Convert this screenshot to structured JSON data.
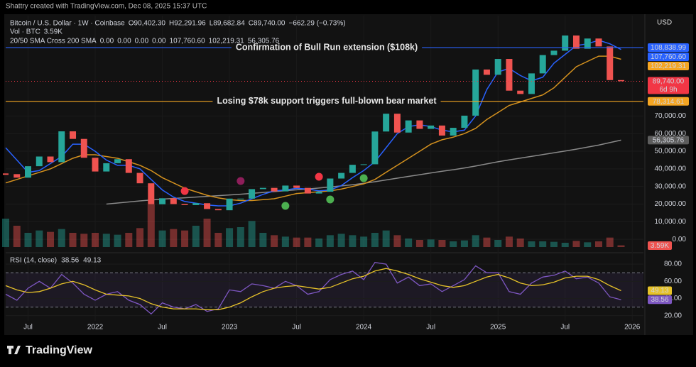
{
  "header": "Shattry created with TradingView.com, Dec 08, 2025 15:37 UTC",
  "footer_logo": "TradingView",
  "chart_data": [
    {
      "type": "candlestick",
      "title": "Bitcoin / U.S. Dollar · 1W · Coinbase",
      "ohlc_legend": [
        "O90,402.30",
        "H92,291.96",
        "L89,682.84",
        "C89,740.00",
        "−662.29 (−0.73%)"
      ],
      "volume_legend": "Vol · BTC",
      "indicator_legend": "20/50 SMA Cross 200 SMA",
      "indicator_values": [
        {
          "text": "0.00",
          "color": "#26a69a"
        },
        {
          "text": "0.00",
          "color": "#26a69a"
        },
        {
          "text": "0.00",
          "color": "#089981"
        },
        {
          "text": "0.00",
          "color": "#f23645"
        },
        {
          "text": "107,760.60",
          "color": "#2962ff"
        },
        {
          "text": "102,219.31",
          "color": "#f5a623"
        },
        {
          "text": "56,305.76",
          "color": "#9e9e9e"
        }
      ],
      "x": [
        "2021-05",
        "2021-06",
        "2021-07",
        "2021-08",
        "2021-09",
        "2021-10",
        "2021-11",
        "2021-12",
        "2022-01",
        "2022-02",
        "2022-03",
        "2022-04",
        "2022-05",
        "2022-06",
        "2022-07",
        "2022-08",
        "2022-09",
        "2022-10",
        "2022-11",
        "2022-12",
        "2023-01",
        "2023-02",
        "2023-03",
        "2023-04",
        "2023-05",
        "2023-06",
        "2023-07",
        "2023-08",
        "2023-09",
        "2023-10",
        "2023-11",
        "2023-12",
        "2024-01",
        "2024-02",
        "2024-03",
        "2024-04",
        "2024-05",
        "2024-06",
        "2024-07",
        "2024-08",
        "2024-09",
        "2024-10",
        "2024-11",
        "2024-12",
        "2025-01",
        "2025-02",
        "2025-03",
        "2025-04",
        "2025-05",
        "2025-06",
        "2025-07",
        "2025-08",
        "2025-09",
        "2025-10",
        "2025-11",
        "2025-12"
      ],
      "xlim": [
        "2021-05",
        "2026-02"
      ],
      "xticks": [
        {
          "value": "2021-07",
          "label": "Jul"
        },
        {
          "value": "2022-01",
          "label": "2022"
        },
        {
          "value": "2022-07",
          "label": "Jul"
        },
        {
          "value": "2023-01",
          "label": "2023"
        },
        {
          "value": "2023-07",
          "label": "Jul"
        },
        {
          "value": "2024-01",
          "label": "2024"
        },
        {
          "value": "2024-07",
          "label": "Jul"
        },
        {
          "value": "2025-01",
          "label": "2025"
        },
        {
          "value": "2025-07",
          "label": "Jul"
        },
        {
          "value": "2026-01",
          "label": "2026"
        }
      ],
      "ylim": [
        -6000,
        127000
      ],
      "yticks": [
        {
          "value": 0,
          "label": "0.00"
        },
        {
          "value": 10000,
          "label": "10,000.00"
        },
        {
          "value": 20000,
          "label": "20,000.00"
        },
        {
          "value": 30000,
          "label": "30,000.00"
        },
        {
          "value": 40000,
          "label": "40,000.00"
        },
        {
          "value": 50000,
          "label": "50,000.00"
        },
        {
          "value": 60000,
          "label": "60,000.00"
        },
        {
          "value": 70000,
          "label": "70,000.00"
        }
      ],
      "up_color": "#26a69a",
      "down_color": "#ef5350",
      "close": [
        37000,
        35000,
        41500,
        47000,
        43800,
        61300,
        57000,
        46300,
        38500,
        43200,
        45500,
        37700,
        31800,
        19900,
        23300,
        20000,
        19400,
        20500,
        17200,
        16500,
        23100,
        23100,
        28500,
        29200,
        27200,
        30500,
        29200,
        26000,
        27000,
        34500,
        37700,
        42300,
        42600,
        61200,
        71300,
        60600,
        67500,
        62700,
        64600,
        58900,
        63300,
        70200,
        96400,
        93400,
        102400,
        84400,
        82500,
        94200,
        104600,
        107100,
        115700,
        108200,
        114000,
        109500,
        90400,
        89740
      ],
      "volume": {
        "values": [
          60000,
          45000,
          30000,
          35000,
          32000,
          38000,
          30000,
          28000,
          30000,
          28000,
          26000,
          30000,
          40000,
          90000,
          35000,
          38000,
          35000,
          45000,
          60000,
          30000,
          40000,
          42000,
          55000,
          30000,
          25000,
          22000,
          20000,
          20000,
          18000,
          25000,
          28000,
          25000,
          22000,
          30000,
          35000,
          25000,
          18000,
          15000,
          16000,
          15000,
          12000,
          14000,
          25000,
          20000,
          15000,
          22000,
          18000,
          12000,
          12000,
          11000,
          9000,
          13000,
          10000,
          12000,
          20000,
          3590
        ],
        "value_labels": [
          null,
          null,
          null,
          null,
          null,
          null,
          null,
          null,
          null,
          null,
          null,
          null,
          null,
          null,
          null,
          null,
          null,
          null,
          null,
          null,
          null,
          null,
          null,
          null,
          null,
          null,
          null,
          null,
          null,
          null,
          null,
          null,
          null,
          null,
          null,
          null,
          null,
          null,
          null,
          null,
          null,
          null,
          null,
          null,
          null,
          null,
          null,
          null,
          null,
          null,
          null,
          null,
          null,
          null,
          null,
          "3.59K"
        ]
      },
      "sma20": {
        "color": "#2962ff",
        "values": [
          52000,
          45000,
          38000,
          39000,
          43000,
          47000,
          54000,
          54000,
          50000,
          45000,
          42000,
          42000,
          40000,
          34000,
          28000,
          24000,
          21500,
          20500,
          19500,
          19000,
          19000,
          20500,
          23000,
          25500,
          27500,
          28000,
          29000,
          28500,
          27500,
          28000,
          30500,
          35000,
          39000,
          44000,
          52000,
          60000,
          64000,
          65000,
          64000,
          62000,
          61000,
          62000,
          70000,
          85000,
          95000,
          97000,
          93000,
          90000,
          92000,
          100000,
          105000,
          110000,
          111000,
          113000,
          111000,
          107760.6
        ]
      },
      "sma50": {
        "color": "#d4911e",
        "values": [
          32000,
          34000,
          36000,
          38000,
          40000,
          43000,
          46000,
          48000,
          48000,
          47000,
          46000,
          44000,
          42000,
          39000,
          35000,
          32000,
          29000,
          27000,
          25000,
          23500,
          22500,
          22000,
          22000,
          22500,
          23000,
          24500,
          26000,
          26500,
          27000,
          27500,
          28500,
          30000,
          31500,
          34000,
          38000,
          42000,
          46000,
          50000,
          54000,
          56500,
          58000,
          60000,
          63000,
          68000,
          72000,
          76000,
          78000,
          80000,
          82000,
          86000,
          92000,
          98000,
          101000,
          104000,
          104000,
          102219.31
        ]
      },
      "sma200": {
        "color": "#8a8a8a",
        "values": [
          null,
          null,
          null,
          null,
          null,
          null,
          null,
          null,
          null,
          20000,
          20600,
          21200,
          21800,
          22300,
          22800,
          23200,
          23600,
          24000,
          24400,
          24800,
          25200,
          25600,
          26100,
          26600,
          27100,
          27600,
          28100,
          28600,
          29100,
          29700,
          30300,
          31000,
          31800,
          32700,
          33700,
          34700,
          35700,
          36700,
          37700,
          38600,
          39500,
          40500,
          41600,
          42800,
          44000,
          45100,
          46100,
          47100,
          48100,
          49100,
          50100,
          51200,
          52300,
          53500,
          54900,
          56305.76
        ]
      },
      "levels": [
        {
          "value": 108838.99,
          "color": "#2962ff",
          "label": "Confirmation of Bull Run extension ($108k)"
        },
        {
          "value": 78314.61,
          "color": "#f5a623",
          "label": "Losing $78k support triggers full-blown bear market"
        }
      ],
      "signals": [
        {
          "x": "2022-09",
          "value": 27400,
          "color": "#f23645"
        },
        {
          "x": "2023-02",
          "value": 33100,
          "color": "#8e1e5a"
        },
        {
          "x": "2023-09",
          "value": 35500,
          "color": "#f23645"
        },
        {
          "x": "2023-06",
          "value": 19000,
          "color": "#4caf50"
        },
        {
          "x": "2023-10",
          "value": 22600,
          "color": "#4caf50"
        },
        {
          "x": "2024-01",
          "value": 34700,
          "color": "#4caf50"
        }
      ],
      "price_labels": [
        {
          "value": 108838.99,
          "label": "108,838.99",
          "color": "#2962ff",
          "text_color": "#ffffff"
        },
        {
          "value": 107760.6,
          "label": "107,760.60",
          "color": "#2962ff",
          "text_color": "#ffffff"
        },
        {
          "value": 102219.31,
          "label": "102,219.31",
          "color": "#f5a623",
          "text_color": "#000000"
        },
        {
          "value": 89740,
          "label": "89,740.00",
          "color": "#f23645",
          "text_color": "#ffffff",
          "sub": "6d 9h"
        },
        {
          "value": 78314.61,
          "label": "78,314.61",
          "color": "#f5a623",
          "text_color": "#000000"
        },
        {
          "value": 56305.76,
          "label": "56,305.76",
          "color": "#5d5d5d",
          "text_color": "#ffffff"
        }
      ],
      "axis_unit": "USD"
    },
    {
      "type": "line",
      "title": "RSI (14, close)",
      "ylim": [
        14,
        90
      ],
      "yticks": [
        {
          "value": 20,
          "label": "20.00"
        },
        {
          "value": 40,
          "label": "40.00"
        },
        {
          "value": 60,
          "label": "60.00"
        },
        {
          "value": 80,
          "label": "80.00"
        }
      ],
      "band": [
        30,
        70
      ],
      "series": [
        {
          "color": "#7e57c2",
          "values": [
            45,
            38,
            52,
            60,
            52,
            68,
            58,
            45,
            38,
            45,
            48,
            38,
            33,
            22,
            35,
            30,
            28,
            33,
            25,
            28,
            50,
            48,
            57,
            55,
            52,
            60,
            55,
            45,
            48,
            62,
            68,
            72,
            62,
            82,
            80,
            58,
            65,
            55,
            57,
            48,
            55,
            62,
            78,
            70,
            70,
            48,
            45,
            58,
            65,
            67,
            72,
            63,
            65,
            58,
            42,
            38.56
          ]
        },
        {
          "color": "#e6c229",
          "values": [
            55,
            50,
            47,
            48,
            52,
            57,
            60,
            56,
            50,
            45,
            44,
            43,
            40,
            34,
            30,
            28,
            28,
            28,
            27,
            27,
            30,
            35,
            42,
            48,
            52,
            54,
            55,
            53,
            51,
            53,
            58,
            63,
            66,
            72,
            75,
            72,
            68,
            63,
            59,
            55,
            53,
            55,
            60,
            65,
            68,
            64,
            58,
            55,
            56,
            59,
            64,
            66,
            66,
            62,
            55,
            49.13
          ]
        }
      ]
    }
  ]
}
